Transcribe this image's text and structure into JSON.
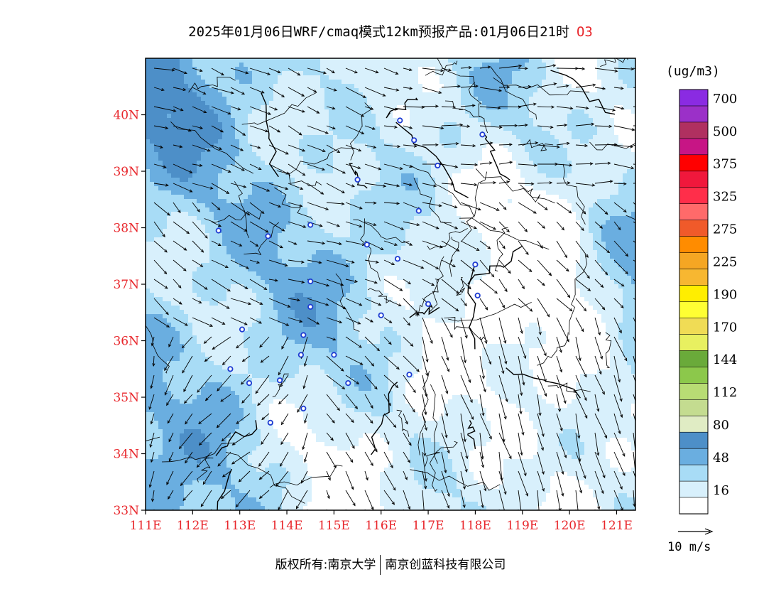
{
  "title": {
    "text": "2025年01月06日WRF/cmaq模式12km预报产品:01月06日21时",
    "species": "O3"
  },
  "map": {
    "lon_range": [
      111,
      121.4
    ],
    "lat_range": [
      33,
      41
    ],
    "y_ticks": [
      "33N",
      "34N",
      "35N",
      "36N",
      "37N",
      "38N",
      "39N",
      "40N"
    ],
    "x_ticks": [
      "111E",
      "112E",
      "113E",
      "114E",
      "115E",
      "116E",
      "117E",
      "118E",
      "119E",
      "120E",
      "121E"
    ],
    "city_markers": [
      [
        116.4,
        39.9
      ],
      [
        116.7,
        39.55
      ],
      [
        117.2,
        39.1
      ],
      [
        115.5,
        38.85
      ],
      [
        116.8,
        38.3
      ],
      [
        112.55,
        37.95
      ],
      [
        113.6,
        37.85
      ],
      [
        114.5,
        38.05
      ],
      [
        115.7,
        37.7
      ],
      [
        116.35,
        37.45
      ],
      [
        118.0,
        37.35
      ],
      [
        118.05,
        36.8
      ],
      [
        116.0,
        36.45
      ],
      [
        117.0,
        36.65
      ],
      [
        114.5,
        37.05
      ],
      [
        114.5,
        36.6
      ],
      [
        113.05,
        36.2
      ],
      [
        114.35,
        36.1
      ],
      [
        115.0,
        35.75
      ],
      [
        114.3,
        35.75
      ],
      [
        112.8,
        35.5
      ],
      [
        113.2,
        35.25
      ],
      [
        113.85,
        35.3
      ],
      [
        115.3,
        35.25
      ],
      [
        116.6,
        35.4
      ],
      [
        114.35,
        34.8
      ],
      [
        113.65,
        34.55
      ],
      [
        118.15,
        39.65
      ]
    ]
  },
  "legend": {
    "unit": "(ug/m3)",
    "levels": [
      {
        "label": "700",
        "color": "#8a2be2"
      },
      {
        "label": "",
        "color": "#9b30c8"
      },
      {
        "label": "500",
        "color": "#b03060"
      },
      {
        "label": "",
        "color": "#c71585"
      },
      {
        "label": "375",
        "color": "#ff0000"
      },
      {
        "label": "",
        "color": "#f0183c"
      },
      {
        "label": "325",
        "color": "#ff2e4a"
      },
      {
        "label": "",
        "color": "#ff6a6a"
      },
      {
        "label": "275",
        "color": "#f05a2a"
      },
      {
        "label": "",
        "color": "#ff8c00"
      },
      {
        "label": "225",
        "color": "#f5a623"
      },
      {
        "label": "",
        "color": "#f7b731"
      },
      {
        "label": "190",
        "color": "#ffee00"
      },
      {
        "label": "",
        "color": "#ffff33"
      },
      {
        "label": "170",
        "color": "#f0dc55"
      },
      {
        "label": "",
        "color": "#e8f060"
      },
      {
        "label": "144",
        "color": "#6aaa3a"
      },
      {
        "label": "",
        "color": "#8cc84b"
      },
      {
        "label": "112",
        "color": "#b8dc74"
      },
      {
        "label": "",
        "color": "#c4dc90"
      },
      {
        "label": "80",
        "color": "#e0ecc4"
      },
      {
        "label": "",
        "color": "#4d8fc8"
      },
      {
        "label": "48",
        "color": "#6aaee0"
      },
      {
        "label": "",
        "color": "#a8dcf6"
      },
      {
        "label": "16",
        "color": "#d8f0fc"
      },
      {
        "label": "",
        "color": "#ffffff"
      }
    ],
    "label_values": [
      "700",
      "500",
      "375",
      "325",
      "275",
      "225",
      "190",
      "170",
      "144",
      "112",
      "80",
      "48",
      "16"
    ]
  },
  "colors": {
    "fill_levels": [
      "#ffffff",
      "#d8f0fc",
      "#a8dcf6",
      "#6aaee0",
      "#4d8fc8"
    ],
    "tick_color": "#e8262b",
    "marker_color": "#1e3cd2"
  },
  "reference_vector": {
    "label": "10 m/s"
  },
  "credit": {
    "left": "版权所有:南京大学",
    "right": "南京创蓝科技有限公司"
  }
}
